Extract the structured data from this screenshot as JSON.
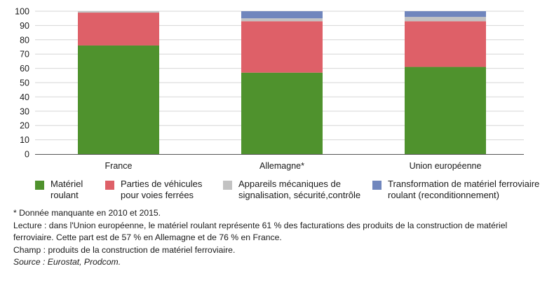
{
  "chart_data": {
    "type": "bar",
    "stacked": true,
    "categories": [
      "France",
      "Allemagne*",
      "Union européenne"
    ],
    "series": [
      {
        "name": "Matériel roulant",
        "color": "#4f922d",
        "values": [
          76,
          57,
          61
        ]
      },
      {
        "name": "Parties de véhicules pour voies ferrées",
        "color": "#de6068",
        "values": [
          23,
          36,
          32
        ]
      },
      {
        "name": "Appareils mécaniques de signalisation, sécurité,contrôle",
        "color": "#c2c2c2",
        "values": [
          1,
          2,
          3
        ]
      },
      {
        "name": "Transformation de matériel ferroviaire roulant (reconditionnement)",
        "color": "#7086bd",
        "values": [
          0,
          5,
          4
        ]
      }
    ],
    "y_ticks": [
      "0",
      "10",
      "20",
      "30",
      "40",
      "50",
      "60",
      "70",
      "80",
      "90",
      "100"
    ],
    "ylim": [
      0,
      100
    ],
    "grid": true,
    "legend_position": "bottom"
  },
  "legend": [
    {
      "lines": [
        "Matériel",
        "roulant"
      ],
      "color": "#4f922d"
    },
    {
      "lines": [
        "Parties de véhicules",
        "pour voies ferrées"
      ],
      "color": "#de6068"
    },
    {
      "lines": [
        "Appareils mécaniques de",
        "signalisation, sécurité,contrôle"
      ],
      "color": "#c2c2c2"
    },
    {
      "lines": [
        "Transformation de matériel ferroviaire",
        "roulant (reconditionnement)"
      ],
      "color": "#7086bd"
    }
  ],
  "notes": {
    "missing": "* Donnée manquante en 2010 et 2015.",
    "reading": "Lecture : dans l'Union européenne, le matériel roulant représente 61 % des facturations des produits de la construction de matériel ferroviaire. Cette part est de 57 % en Allemagne et de 76 % en France.",
    "scope": "Champ : produits de la construction de matériel ferroviaire.",
    "source": "Source : Eurostat, Prodcom."
  }
}
